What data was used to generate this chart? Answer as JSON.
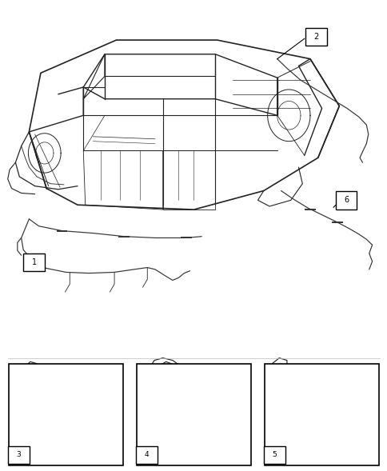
{
  "bg_color": "#ffffff",
  "fig_width": 4.85,
  "fig_height": 5.89,
  "dpi": 100,
  "line_color": "#222222",
  "lw_main": 0.9,
  "label_font_size": 7,
  "sub_label_font_size": 6.5
}
